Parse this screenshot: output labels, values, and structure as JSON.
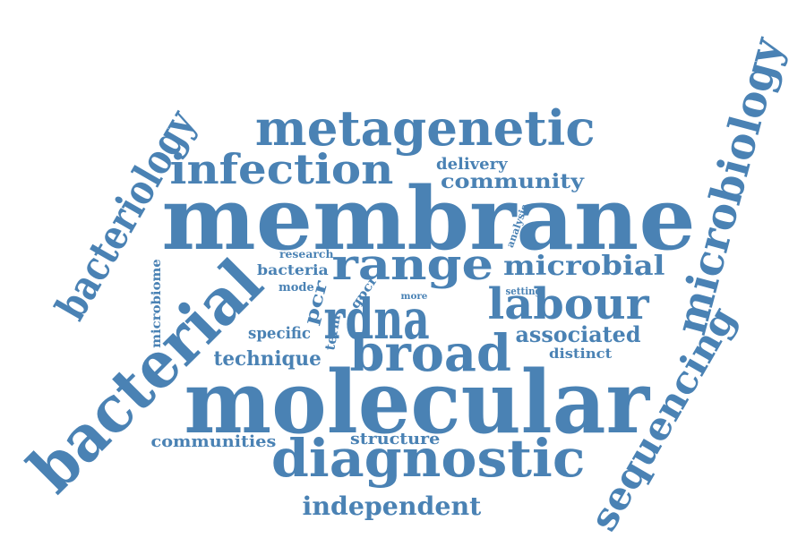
{
  "style": {
    "word_color": "#4a82b4",
    "background": "#ffffff"
  },
  "words": [
    {
      "text": "membrane"
    },
    {
      "text": "molecular"
    },
    {
      "text": "bacterial"
    },
    {
      "text": "metagenetic"
    },
    {
      "text": "bacteriology"
    },
    {
      "text": "microbiology"
    },
    {
      "text": "infection"
    },
    {
      "text": "diagnostic"
    },
    {
      "text": "sequencing"
    },
    {
      "text": "range"
    },
    {
      "text": "rdna"
    },
    {
      "text": "broad"
    },
    {
      "text": "labour"
    },
    {
      "text": "microbial"
    },
    {
      "text": "associated"
    },
    {
      "text": "independent"
    },
    {
      "text": "community"
    },
    {
      "text": "delivery"
    },
    {
      "text": "technique"
    },
    {
      "text": "communities"
    },
    {
      "text": "structure"
    },
    {
      "text": "specific"
    },
    {
      "text": "bacteria"
    },
    {
      "text": "research"
    },
    {
      "text": "mode"
    },
    {
      "text": "distinct"
    },
    {
      "text": "microbiome"
    },
    {
      "text": "pcr"
    },
    {
      "text": "qpcr"
    },
    {
      "text": "term"
    },
    {
      "text": "analysis"
    },
    {
      "text": "setting"
    },
    {
      "text": "more"
    }
  ]
}
